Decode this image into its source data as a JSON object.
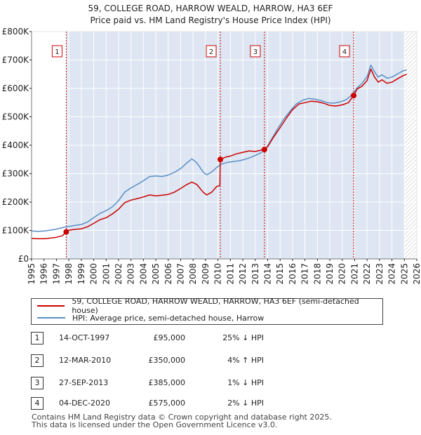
{
  "title_line1": "59, COLLEGE ROAD, HARROW WEALD, HARROW, HA3 6EF",
  "title_line2": "Price paid vs. HM Land Registry's House Price Index (HPI)",
  "colors": {
    "property": "#cc0000",
    "hpi": "#5b8fc7",
    "shade": "#dde6f2"
  },
  "chart_data": {
    "type": "line",
    "title": "59, COLLEGE ROAD, HARROW WEALD, HARROW, HA3 6EF",
    "subtitle": "Price paid vs. HM Land Registry's House Price Index (HPI)",
    "xlabel": "",
    "ylabel": "",
    "xlim": [
      1995,
      2026
    ],
    "ylim": [
      0,
      800000
    ],
    "x_ticks": [
      "1995",
      "1996",
      "1997",
      "1998",
      "1999",
      "2000",
      "2001",
      "2002",
      "2003",
      "2004",
      "2005",
      "2006",
      "2007",
      "2008",
      "2009",
      "2010",
      "2011",
      "2012",
      "2013",
      "2014",
      "2015",
      "2016",
      "2017",
      "2018",
      "2019",
      "2020",
      "2021",
      "2022",
      "2023",
      "2024",
      "2025",
      "2026"
    ],
    "y_ticks": [
      {
        "value": 0,
        "label": "£0"
      },
      {
        "value": 100000,
        "label": "£100K"
      },
      {
        "value": 200000,
        "label": "£200K"
      },
      {
        "value": 300000,
        "label": "£300K"
      },
      {
        "value": 400000,
        "label": "£400K"
      },
      {
        "value": 500000,
        "label": "£500K"
      },
      {
        "value": 600000,
        "label": "£600K"
      },
      {
        "value": 700000,
        "label": "£700K"
      },
      {
        "value": 800000,
        "label": "£800K"
      }
    ],
    "grid": true,
    "legend_position": "below",
    "hatched_region_start": 2025.0,
    "series": [
      {
        "name": "59, COLLEGE ROAD, HARROW WEALD, HARROW, HA3 6EF (semi-detached house)",
        "color": "#cc0000",
        "points": [
          [
            1995.0,
            72000
          ],
          [
            1995.5,
            71000
          ],
          [
            1996.0,
            71000
          ],
          [
            1996.5,
            73000
          ],
          [
            1997.0,
            76000
          ],
          [
            1997.5,
            82000
          ],
          [
            1997.79,
            95000
          ],
          [
            1998.0,
            101000
          ],
          [
            1998.5,
            104000
          ],
          [
            1999.0,
            106000
          ],
          [
            1999.5,
            113000
          ],
          [
            2000.0,
            125000
          ],
          [
            2000.5,
            138000
          ],
          [
            2001.0,
            145000
          ],
          [
            2001.5,
            158000
          ],
          [
            2002.0,
            175000
          ],
          [
            2002.5,
            198000
          ],
          [
            2003.0,
            207000
          ],
          [
            2003.5,
            212000
          ],
          [
            2004.0,
            218000
          ],
          [
            2004.5,
            225000
          ],
          [
            2005.0,
            222000
          ],
          [
            2005.5,
            224000
          ],
          [
            2006.0,
            227000
          ],
          [
            2006.5,
            235000
          ],
          [
            2007.0,
            248000
          ],
          [
            2007.5,
            262000
          ],
          [
            2007.9,
            270000
          ],
          [
            2008.3,
            262000
          ],
          [
            2008.8,
            235000
          ],
          [
            2009.1,
            225000
          ],
          [
            2009.5,
            235000
          ],
          [
            2009.9,
            255000
          ],
          [
            2010.15,
            258000
          ],
          [
            2010.19,
            350000
          ],
          [
            2010.6,
            358000
          ],
          [
            2011.0,
            362000
          ],
          [
            2011.5,
            370000
          ],
          [
            2012.0,
            375000
          ],
          [
            2012.5,
            380000
          ],
          [
            2013.0,
            378000
          ],
          [
            2013.5,
            383000
          ],
          [
            2013.74,
            385000
          ],
          [
            2014.0,
            395000
          ],
          [
            2014.5,
            430000
          ],
          [
            2015.0,
            462000
          ],
          [
            2015.5,
            495000
          ],
          [
            2016.0,
            525000
          ],
          [
            2016.5,
            545000
          ],
          [
            2017.0,
            550000
          ],
          [
            2017.5,
            555000
          ],
          [
            2018.0,
            553000
          ],
          [
            2018.5,
            548000
          ],
          [
            2019.0,
            540000
          ],
          [
            2019.5,
            538000
          ],
          [
            2020.0,
            542000
          ],
          [
            2020.5,
            550000
          ],
          [
            2020.92,
            575000
          ],
          [
            2021.2,
            598000
          ],
          [
            2021.6,
            608000
          ],
          [
            2022.0,
            628000
          ],
          [
            2022.3,
            668000
          ],
          [
            2022.6,
            640000
          ],
          [
            2022.9,
            622000
          ],
          [
            2023.2,
            630000
          ],
          [
            2023.6,
            618000
          ],
          [
            2024.0,
            622000
          ],
          [
            2024.5,
            635000
          ],
          [
            2024.9,
            645000
          ],
          [
            2025.2,
            650000
          ]
        ]
      },
      {
        "name": "HPI: Average price, semi-detached house, Harrow",
        "color": "#5b8fc7",
        "points": [
          [
            1995.0,
            98000
          ],
          [
            1995.5,
            97000
          ],
          [
            1996.0,
            98000
          ],
          [
            1996.5,
            101000
          ],
          [
            1997.0,
            105000
          ],
          [
            1997.5,
            110000
          ],
          [
            1998.0,
            114000
          ],
          [
            1998.5,
            118000
          ],
          [
            1999.0,
            121000
          ],
          [
            1999.5,
            130000
          ],
          [
            2000.0,
            145000
          ],
          [
            2000.5,
            160000
          ],
          [
            2001.0,
            170000
          ],
          [
            2001.5,
            183000
          ],
          [
            2002.0,
            205000
          ],
          [
            2002.5,
            235000
          ],
          [
            2003.0,
            250000
          ],
          [
            2003.5,
            262000
          ],
          [
            2004.0,
            275000
          ],
          [
            2004.5,
            290000
          ],
          [
            2005.0,
            292000
          ],
          [
            2005.5,
            290000
          ],
          [
            2006.0,
            295000
          ],
          [
            2006.5,
            305000
          ],
          [
            2007.0,
            318000
          ],
          [
            2007.5,
            338000
          ],
          [
            2007.9,
            352000
          ],
          [
            2008.3,
            338000
          ],
          [
            2008.8,
            306000
          ],
          [
            2009.1,
            296000
          ],
          [
            2009.5,
            306000
          ],
          [
            2009.9,
            322000
          ],
          [
            2010.3,
            334000
          ],
          [
            2010.8,
            340000
          ],
          [
            2011.3,
            343000
          ],
          [
            2011.8,
            346000
          ],
          [
            2012.3,
            352000
          ],
          [
            2012.8,
            360000
          ],
          [
            2013.3,
            370000
          ],
          [
            2013.8,
            384000
          ],
          [
            2014.3,
            420000
          ],
          [
            2014.8,
            458000
          ],
          [
            2015.3,
            492000
          ],
          [
            2015.8,
            520000
          ],
          [
            2016.3,
            545000
          ],
          [
            2016.8,
            558000
          ],
          [
            2017.3,
            565000
          ],
          [
            2017.8,
            562000
          ],
          [
            2018.3,
            557000
          ],
          [
            2018.8,
            550000
          ],
          [
            2019.3,
            548000
          ],
          [
            2019.8,
            552000
          ],
          [
            2020.3,
            560000
          ],
          [
            2020.8,
            578000
          ],
          [
            2021.2,
            602000
          ],
          [
            2021.6,
            618000
          ],
          [
            2022.0,
            642000
          ],
          [
            2022.3,
            682000
          ],
          [
            2022.6,
            658000
          ],
          [
            2022.9,
            640000
          ],
          [
            2023.2,
            648000
          ],
          [
            2023.6,
            636000
          ],
          [
            2024.0,
            640000
          ],
          [
            2024.5,
            652000
          ],
          [
            2024.9,
            662000
          ],
          [
            2025.2,
            665000
          ]
        ]
      }
    ],
    "sales": [
      {
        "num": "1",
        "x": 1997.79,
        "price": 95000
      },
      {
        "num": "2",
        "x": 2010.19,
        "price": 350000
      },
      {
        "num": "3",
        "x": 2013.74,
        "price": 385000
      },
      {
        "num": "4",
        "x": 2020.92,
        "price": 575000
      }
    ]
  },
  "legend": {
    "property": "59, COLLEGE ROAD, HARROW WEALD, HARROW, HA3 6EF (semi-detached house)",
    "hpi": "HPI: Average price, semi-detached house, Harrow"
  },
  "transactions": [
    {
      "num": "1",
      "date": "14-OCT-1997",
      "price": "£95,000",
      "hpi": "25% ↓ HPI"
    },
    {
      "num": "2",
      "date": "12-MAR-2010",
      "price": "£350,000",
      "hpi": "4% ↑ HPI"
    },
    {
      "num": "3",
      "date": "27-SEP-2013",
      "price": "£385,000",
      "hpi": "1% ↓ HPI"
    },
    {
      "num": "4",
      "date": "04-DEC-2020",
      "price": "£575,000",
      "hpi": "2% ↓ HPI"
    }
  ],
  "footer_line1": "Contains HM Land Registry data © Crown copyright and database right 2025.",
  "footer_line2": "This data is licensed under the Open Government Licence v3.0."
}
